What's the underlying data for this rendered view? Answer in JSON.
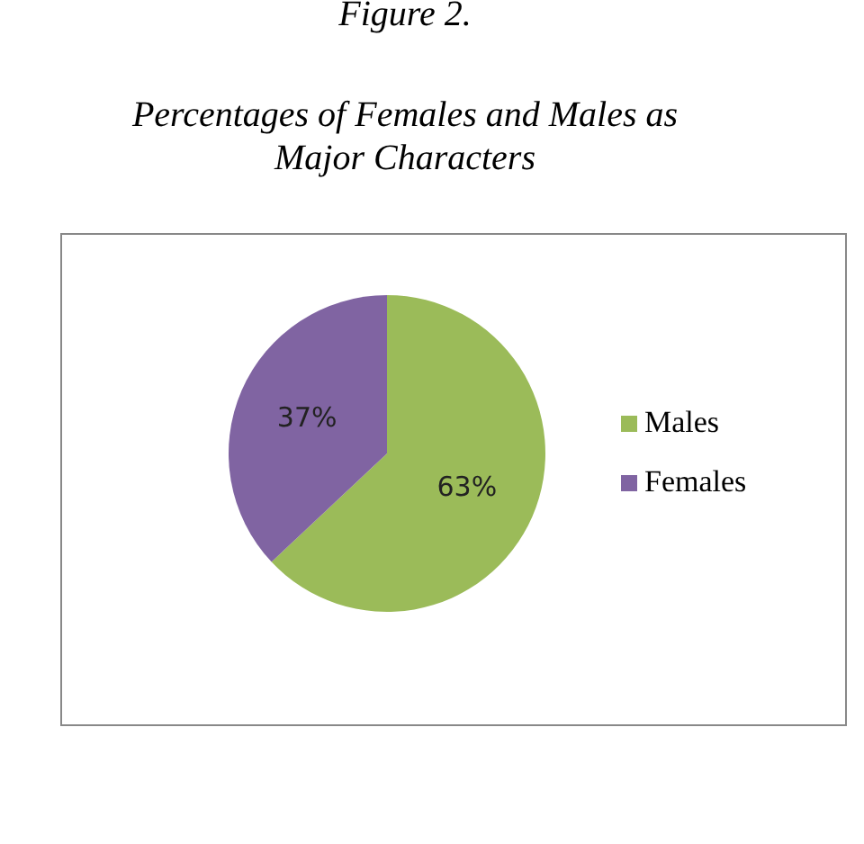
{
  "chart_data": {
    "type": "pie",
    "title": "Percentages of Females and Males as Major Characters",
    "annotations": [
      "Figure 2."
    ],
    "categories": [
      "Males",
      "Females"
    ],
    "values": [
      63,
      37
    ],
    "colors": [
      "#9bbb59",
      "#8064a2"
    ],
    "value_labels": [
      "63%",
      "37%"
    ],
    "legend": "right"
  }
}
